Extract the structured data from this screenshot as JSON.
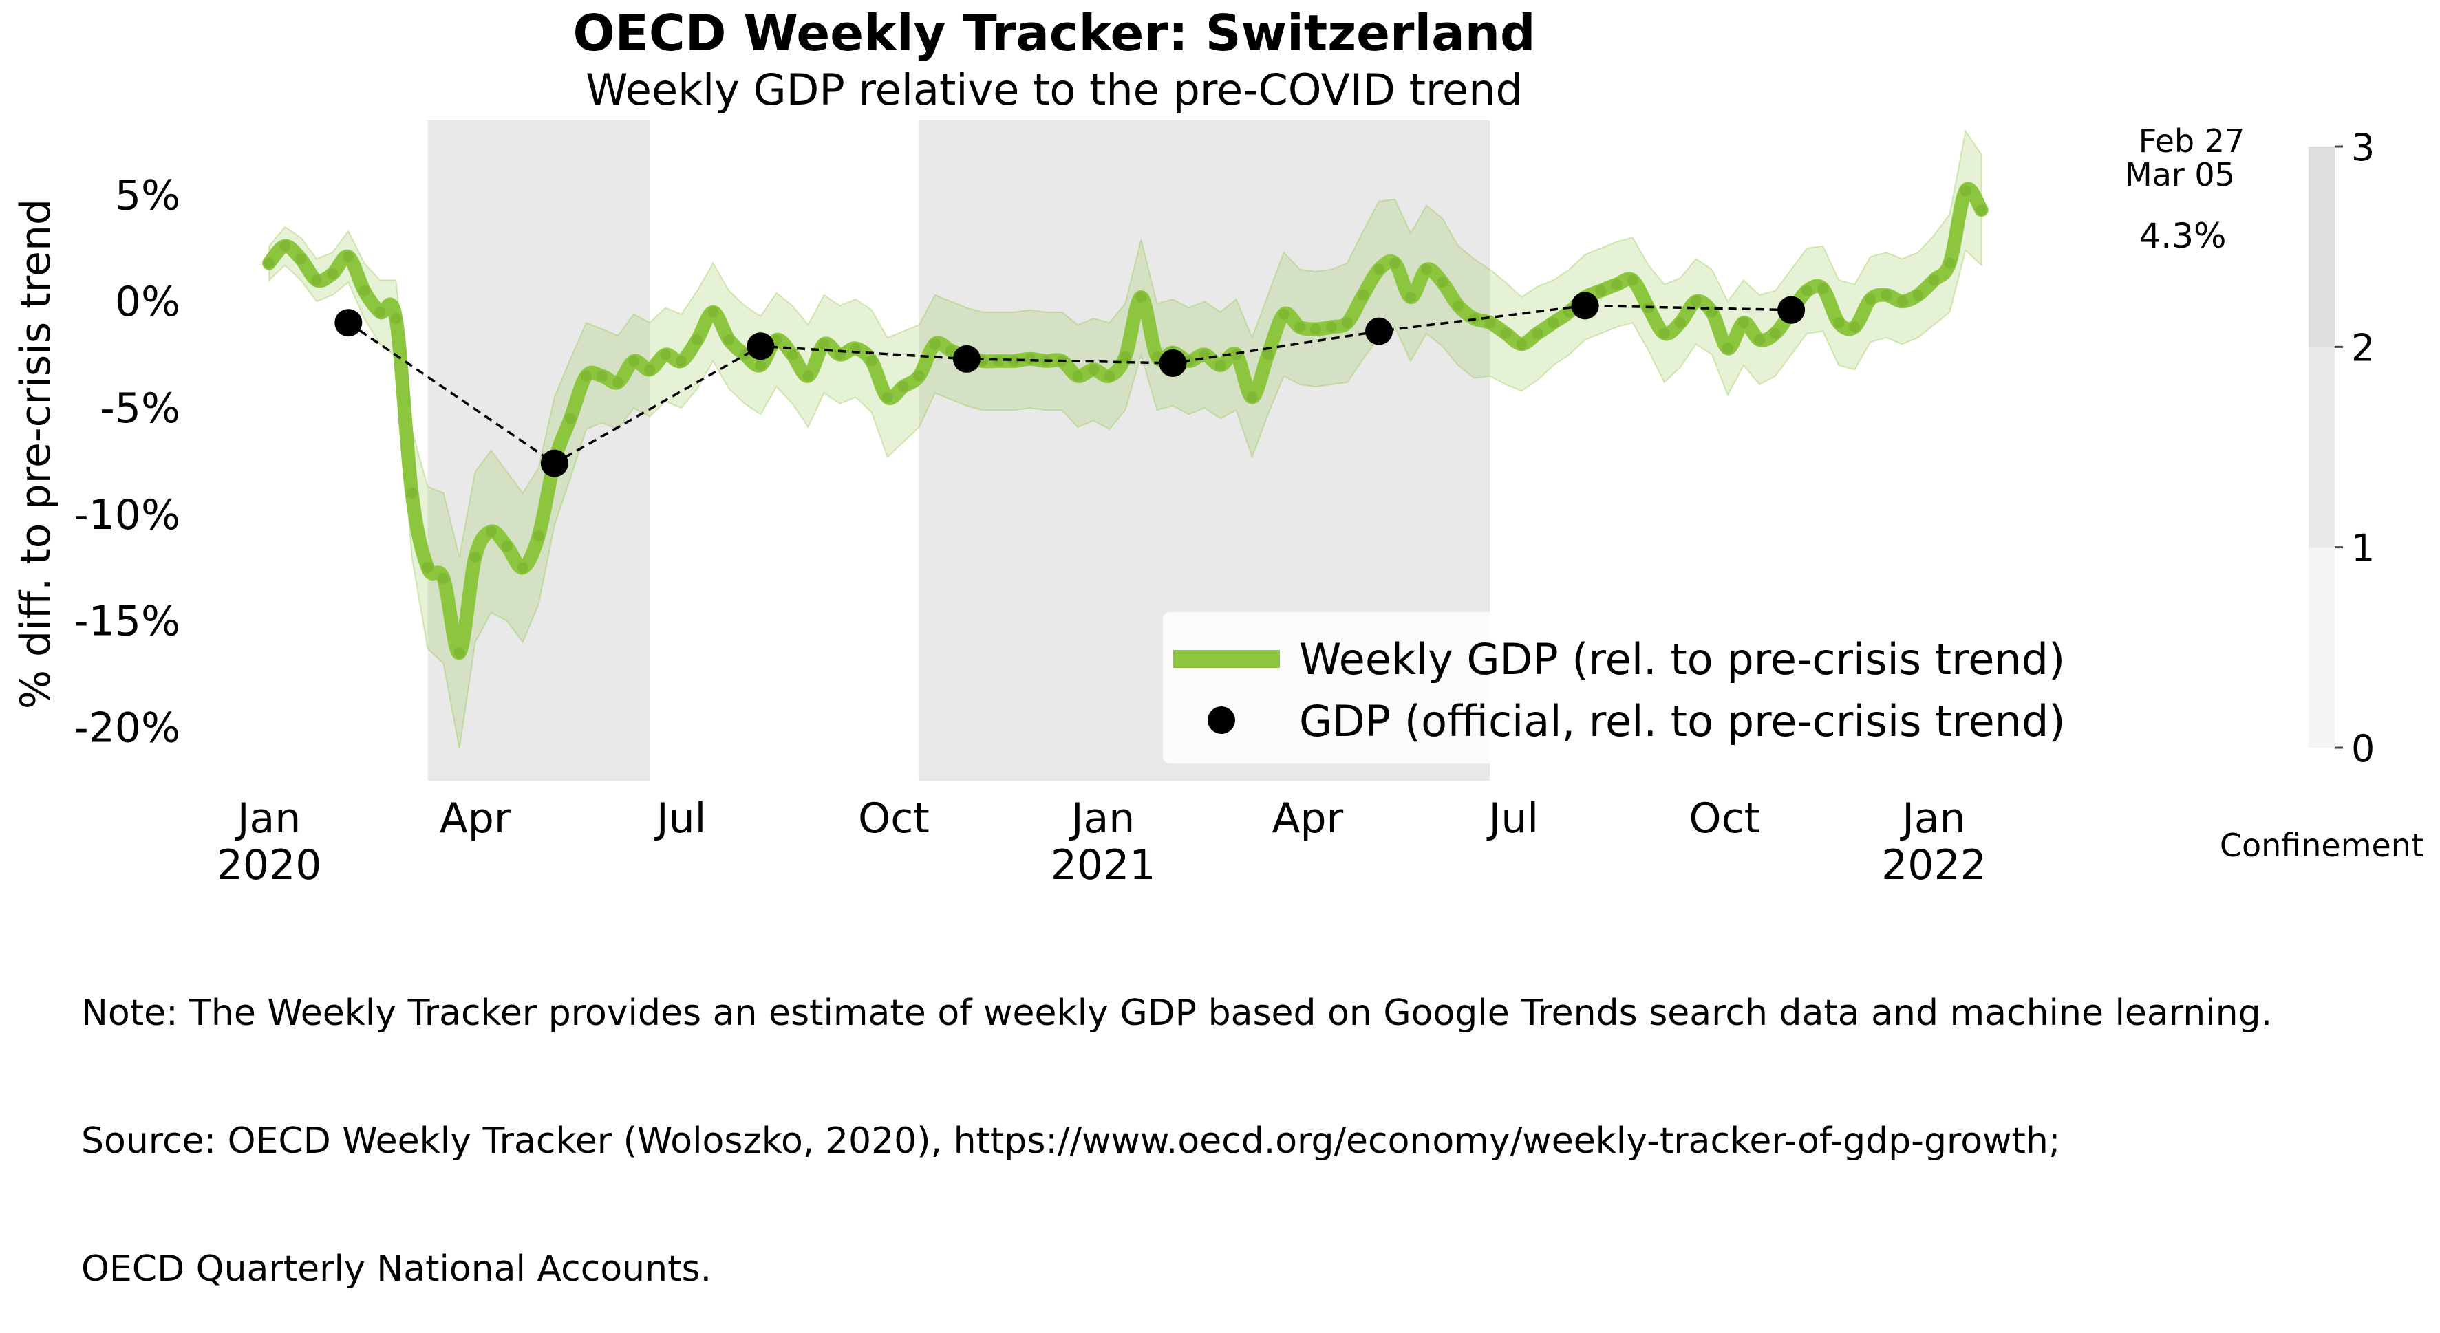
{
  "chart_data": {
    "type": "line",
    "title": "OECD Weekly Tracker: Switzerland",
    "subtitle": "Weekly GDP relative to the pre-COVID trend",
    "ylabel": "% diff. to pre-crisis trend",
    "ylim": [
      -22.5,
      8.5
    ],
    "y_ticks": [
      {
        "value": 5,
        "label": "5%"
      },
      {
        "value": 0,
        "label": "0%"
      },
      {
        "value": -5,
        "label": "-5%"
      },
      {
        "value": -10,
        "label": "-10%"
      },
      {
        "value": -15,
        "label": "-15%"
      },
      {
        "value": -20,
        "label": "-20%"
      }
    ],
    "x_range_weeks": [
      -2,
      118
    ],
    "x_ticks": [
      {
        "week": 0,
        "label": "Jan",
        "sublabel": "2020"
      },
      {
        "week": 13,
        "label": "Apr",
        "sublabel": ""
      },
      {
        "week": 26,
        "label": "Jul",
        "sublabel": ""
      },
      {
        "week": 39.4,
        "label": "Oct",
        "sublabel": ""
      },
      {
        "week": 52.6,
        "label": "Jan",
        "sublabel": "2021"
      },
      {
        "week": 65.5,
        "label": "Apr",
        "sublabel": ""
      },
      {
        "week": 78.5,
        "label": "Jul",
        "sublabel": ""
      },
      {
        "week": 91.8,
        "label": "Oct",
        "sublabel": ""
      },
      {
        "week": 105,
        "label": "Jan",
        "sublabel": "2022"
      }
    ],
    "shaded_periods": [
      {
        "start_week": 10,
        "end_week": 24,
        "level": 2
      },
      {
        "start_week": 41,
        "end_week": 77,
        "level": 2
      }
    ],
    "series": [
      {
        "name": "Weekly GDP (rel. to pre-crisis trend)",
        "color": "#8cc63f",
        "start_week": 0,
        "values": [
          1.8,
          2.6,
          2.0,
          1.0,
          1.3,
          2.1,
          0.5,
          -0.5,
          -0.8,
          -9.0,
          -12.5,
          -13.0,
          -16.5,
          -12.0,
          -10.8,
          -11.5,
          -12.5,
          -11.0,
          -7.5,
          -5.5,
          -3.5,
          -3.5,
          -3.8,
          -2.8,
          -3.2,
          -2.5,
          -2.8,
          -1.8,
          -0.5,
          -1.8,
          -2.5,
          -3.0,
          -1.8,
          -2.5,
          -3.5,
          -2.0,
          -2.5,
          -2.2,
          -2.8,
          -4.5,
          -4.0,
          -3.5,
          -2.0,
          -2.3,
          -2.6,
          -2.8,
          -2.8,
          -2.8,
          -2.7,
          -2.8,
          -2.8,
          -3.5,
          -3.2,
          -3.5,
          -2.6,
          0.2,
          -2.6,
          -2.4,
          -2.8,
          -2.5,
          -3.0,
          -2.5,
          -4.5,
          -2.5,
          -0.6,
          -1.2,
          -1.3,
          -1.2,
          -1.0,
          0.3,
          1.5,
          1.8,
          0.2,
          1.5,
          0.9,
          -0.2,
          -0.8,
          -1.0,
          -1.5,
          -2.0,
          -1.5,
          -1.0,
          -0.5,
          0.2,
          0.5,
          0.8,
          1.0,
          -0.3,
          -1.5,
          -1.0,
          0.0,
          -0.5,
          -2.2,
          -1.0,
          -1.8,
          -1.5,
          -0.5,
          0.5,
          0.6,
          -1.0,
          -1.2,
          0.1,
          0.3,
          0.0,
          0.3,
          1.0,
          1.8,
          5.2,
          4.3
        ],
        "ci_width": [
          0.8,
          0.9,
          1.0,
          1.0,
          1.0,
          1.2,
          1.3,
          1.5,
          1.8,
          3.0,
          3.8,
          4.0,
          4.5,
          4.0,
          3.8,
          3.5,
          3.5,
          3.2,
          3.0,
          2.8,
          2.5,
          2.2,
          2.2,
          2.2,
          2.2,
          2.2,
          2.2,
          2.3,
          2.3,
          2.3,
          2.3,
          2.3,
          2.2,
          2.3,
          2.4,
          2.3,
          2.3,
          2.3,
          2.4,
          2.8,
          2.6,
          2.4,
          2.3,
          2.3,
          2.3,
          2.3,
          2.3,
          2.3,
          2.3,
          2.3,
          2.3,
          2.4,
          2.4,
          2.5,
          2.5,
          2.7,
          2.5,
          2.5,
          2.5,
          2.5,
          2.5,
          2.6,
          2.8,
          2.8,
          2.9,
          2.7,
          2.7,
          2.7,
          2.8,
          3.0,
          3.2,
          3.0,
          3.0,
          3.0,
          3.0,
          2.8,
          2.8,
          2.5,
          2.4,
          2.2,
          2.2,
          2.0,
          2.0,
          2.0,
          2.0,
          2.0,
          2.0,
          2.0,
          2.3,
          2.1,
          2.0,
          2.0,
          2.2,
          2.0,
          2.1,
          2.0,
          2.0,
          2.0,
          2.0,
          2.0,
          2.0,
          2.0,
          2.0,
          2.0,
          2.0,
          2.1,
          2.3,
          2.8,
          2.6
        ]
      },
      {
        "name": "GDP (official, rel. to pre-crisis trend)",
        "color": "#000000",
        "points": [
          {
            "week": 5,
            "value": -1.0
          },
          {
            "week": 18,
            "value": -7.6
          },
          {
            "week": 31,
            "value": -2.1
          },
          {
            "week": 44,
            "value": -2.7
          },
          {
            "week": 57,
            "value": -2.9
          },
          {
            "week": 70,
            "value": -1.4
          },
          {
            "week": 83,
            "value": -0.2
          },
          {
            "week": 96,
            "value": -0.4
          }
        ]
      }
    ],
    "annotations": {
      "date_line_1": "Feb 27",
      "date_line_2": "Mar 05",
      "last_value": "4.3%"
    },
    "confinement_scale": {
      "label": "Confinement",
      "ticks": [
        "0",
        "1",
        "2",
        "3"
      ],
      "colors": [
        "#ffffff",
        "#f4f4f4",
        "#e9e9e9",
        "#dedede"
      ]
    },
    "legend_position": "lower-right"
  },
  "note": {
    "line1": "Note: The Weekly Tracker provides an estimate of weekly GDP based on Google Trends search data and machine learning.",
    "line2": "Source: OECD Weekly Tracker (Woloszko, 2020), https://www.oecd.org/economy/weekly-tracker-of-gdp-growth;",
    "line3": "OECD Quarterly National Accounts."
  }
}
